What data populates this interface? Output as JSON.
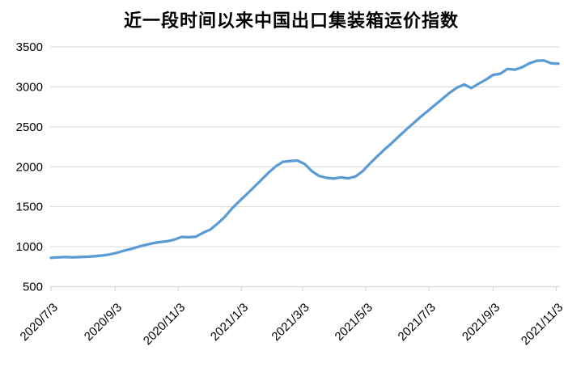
{
  "chart_data": {
    "type": "line",
    "title": "近一段时间以来中国出口集装箱运价指数",
    "xlabel": "",
    "ylabel": "",
    "ylim": [
      500,
      3500
    ],
    "y_ticks": [
      500,
      1000,
      1500,
      2000,
      2500,
      3000,
      3500
    ],
    "x_tick_labels": [
      "2020/7/3",
      "2020/9/3",
      "2020/11/3",
      "2021/1/3",
      "2021/3/3",
      "2021/5/3",
      "2021/7/3",
      "2021/9/3",
      "2021/11/3"
    ],
    "x_start_date": "2020/7/3",
    "x_end_date": "2021/11/5",
    "x_interval_days": 7,
    "grid": "horizontal-only",
    "legend": "none",
    "line_color": "#5B9BD5",
    "gridline_color": "#D9D9D9",
    "axis_color": "#D9D9D9",
    "label_color": "#000000",
    "values": [
      862,
      866,
      870,
      866,
      870,
      874,
      880,
      890,
      902,
      922,
      948,
      972,
      998,
      1022,
      1042,
      1058,
      1068,
      1088,
      1122,
      1118,
      1125,
      1175,
      1215,
      1290,
      1375,
      1480,
      1570,
      1655,
      1745,
      1835,
      1925,
      2005,
      2062,
      2072,
      2078,
      2035,
      1945,
      1885,
      1862,
      1852,
      1868,
      1855,
      1878,
      1945,
      2040,
      2130,
      2215,
      2295,
      2380,
      2465,
      2545,
      2625,
      2700,
      2775,
      2850,
      2925,
      2990,
      3030,
      2985,
      3040,
      3090,
      3150,
      3165,
      3225,
      3215,
      3245,
      3295,
      3325,
      3330,
      3295,
      3290
    ]
  }
}
